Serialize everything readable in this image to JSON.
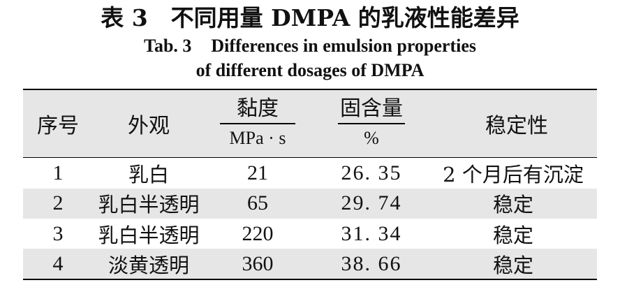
{
  "title": {
    "cn": "表 3　不同用量 DMPA 的乳液性能差异",
    "en_label": "Tab. 3",
    "en_line1_text": "Differences in emulsion properties",
    "en_line2": "of different dosages of DMPA"
  },
  "table": {
    "headers": {
      "seq": "序号",
      "appearance": "外观",
      "viscosity": {
        "label": "黏度",
        "unit": "MPa · s"
      },
      "solids": {
        "label": "固含量",
        "unit": "%"
      },
      "stability": "稳定性"
    },
    "rows": [
      {
        "seq": "1",
        "appearance": "乳白",
        "viscosity": "21",
        "solids": "26. 35",
        "stability": "2 个月后有沉淀"
      },
      {
        "seq": "2",
        "appearance": "乳白半透明",
        "viscosity": "65",
        "solids": "29. 74",
        "stability": "稳定"
      },
      {
        "seq": "3",
        "appearance": "乳白半透明",
        "viscosity": "220",
        "solids": "31. 34",
        "stability": "稳定"
      },
      {
        "seq": "4",
        "appearance": "淡黄透明",
        "viscosity": "360",
        "solids": "38. 66",
        "stability": "稳定"
      }
    ]
  }
}
